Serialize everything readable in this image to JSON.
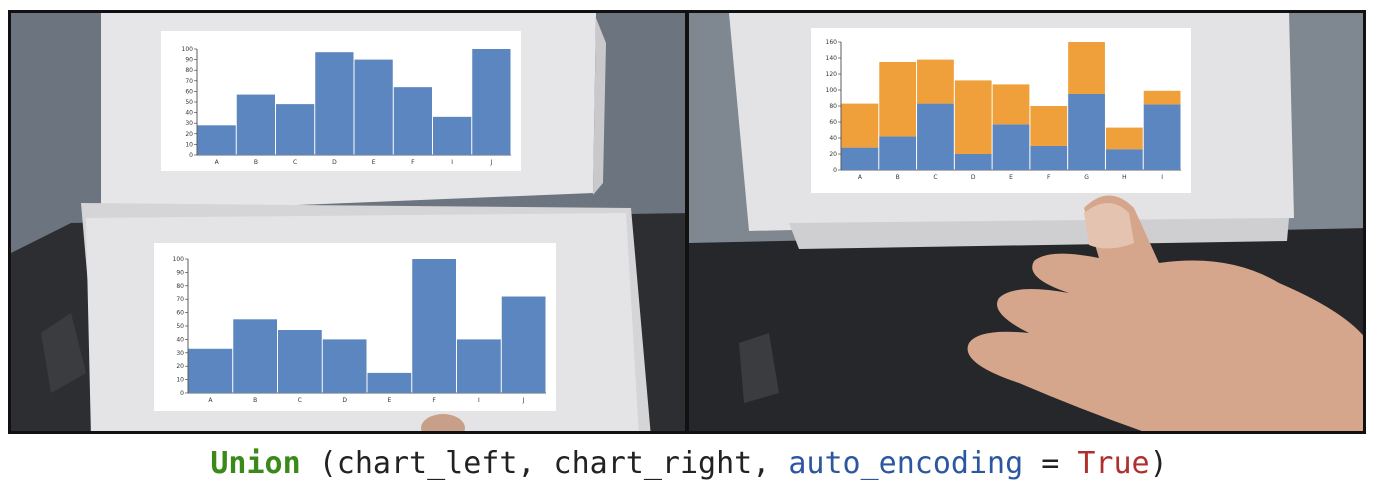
{
  "caption": {
    "func": "Union",
    "open": " (chart_left, chart_right, ",
    "param": "auto_encoding",
    "eq": " = ",
    "value": "True",
    "close": ")"
  },
  "colors": {
    "bar_blue": "#5b86bf",
    "bar_orange": "#f0a03a"
  },
  "chart_data": [
    {
      "id": "left-top",
      "type": "bar",
      "categories": [
        "A",
        "B",
        "C",
        "D",
        "E",
        "F",
        "I",
        "J"
      ],
      "values": [
        28,
        57,
        48,
        97,
        90,
        64,
        36,
        100
      ],
      "ylim": [
        0,
        100
      ],
      "yticks": [
        "0",
        "10",
        "20",
        "30",
        "40",
        "50",
        "60",
        "70",
        "80",
        "90",
        "100"
      ],
      "title": "",
      "xlabel": "",
      "ylabel": ""
    },
    {
      "id": "left-bottom",
      "type": "bar",
      "categories": [
        "A",
        "B",
        "C",
        "D",
        "E",
        "F",
        "I",
        "J"
      ],
      "values": [
        33,
        55,
        47,
        40,
        15,
        100,
        40,
        72
      ],
      "ylim": [
        0,
        100
      ],
      "yticks": [
        "0",
        "10",
        "20",
        "30",
        "40",
        "50",
        "60",
        "70",
        "80",
        "90",
        "100"
      ],
      "title": "",
      "xlabel": "",
      "ylabel": ""
    },
    {
      "id": "right",
      "type": "bar",
      "stacked": true,
      "categories": [
        "A",
        "B",
        "C",
        "D",
        "E",
        "F",
        "G",
        "H",
        "I"
      ],
      "series": [
        {
          "values": [
            28,
            42,
            83,
            20,
            57,
            30,
            95,
            26,
            82
          ]
        },
        {
          "values": [
            55,
            93,
            55,
            92,
            50,
            50,
            65,
            27,
            17
          ]
        }
      ],
      "ylim": [
        0,
        160
      ],
      "yticks": [
        "0",
        "20",
        "40",
        "60",
        "80",
        "100",
        "120",
        "140",
        "160"
      ],
      "title": "",
      "xlabel": "",
      "ylabel": ""
    }
  ]
}
